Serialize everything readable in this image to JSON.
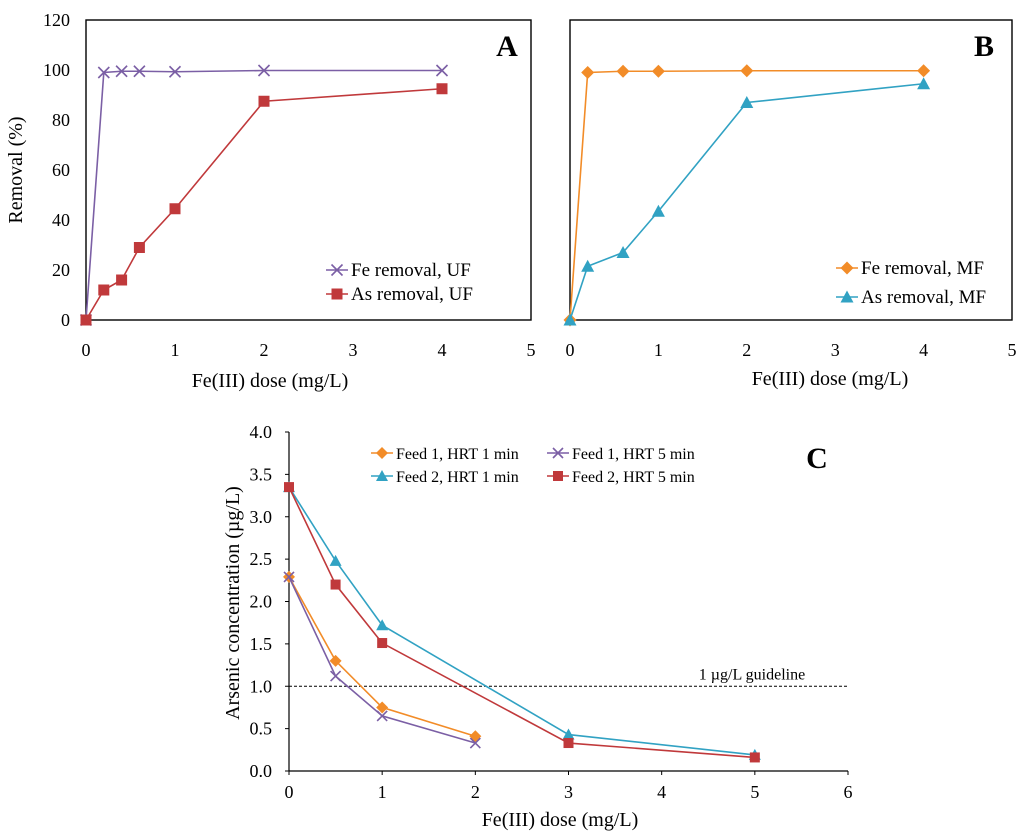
{
  "chart_data": [
    {
      "panel": "A",
      "type": "line",
      "xlabel": "Fe(III) dose (mg/L)",
      "ylabel": "Removal (%)",
      "xlim": [
        0,
        5
      ],
      "ylim": [
        0,
        120
      ],
      "xticks": [
        0,
        1,
        2,
        3,
        4,
        5
      ],
      "yticks": [
        0,
        20,
        40,
        60,
        80,
        100,
        120
      ],
      "grid": false,
      "legend_position": "bottom-right",
      "series": [
        {
          "name": "Fe removal, UF",
          "color": "#7B5FA5",
          "marker": "x",
          "x": [
            0,
            0.2,
            0.4,
            0.6,
            1,
            2,
            4
          ],
          "y": [
            0,
            99,
            99.5,
            99.5,
            99.3,
            99.8,
            99.8
          ]
        },
        {
          "name": "As removal, UF",
          "color": "#C0393B",
          "marker": "square",
          "x": [
            0,
            0.2,
            0.4,
            0.6,
            1,
            2,
            4
          ],
          "y": [
            0,
            12,
            16,
            29,
            44.5,
            87.5,
            92.5
          ]
        }
      ]
    },
    {
      "panel": "B",
      "type": "line",
      "xlabel": "Fe(III) dose (mg/L)",
      "ylabel": "",
      "xlim": [
        0,
        5
      ],
      "ylim": [
        0,
        120
      ],
      "xticks": [
        0,
        1,
        2,
        3,
        4,
        5
      ],
      "grid": false,
      "legend_position": "bottom-right",
      "series": [
        {
          "name": "Fe removal, MF",
          "color": "#F28C28",
          "marker": "diamond",
          "x": [
            0,
            0.2,
            0.6,
            1,
            2,
            4
          ],
          "y": [
            0,
            99,
            99.5,
            99.5,
            99.7,
            99.7
          ]
        },
        {
          "name": "As removal, MF",
          "color": "#31A2C3",
          "marker": "triangle",
          "x": [
            0,
            0.2,
            0.6,
            1,
            2,
            4
          ],
          "y": [
            0,
            21.5,
            27,
            43.5,
            87,
            94.5
          ]
        }
      ]
    },
    {
      "panel": "C",
      "type": "line",
      "xlabel": "Fe(III) dose (mg/L)",
      "ylabel": "Arsenic concentration (µg/L)",
      "xlim": [
        0,
        6
      ],
      "ylim": [
        0,
        4
      ],
      "xticks": [
        0,
        1,
        2,
        3,
        4,
        5,
        6
      ],
      "yticks": [
        "0.0",
        "0.5",
        "1.0",
        "1.5",
        "2.0",
        "2.5",
        "3.0",
        "3.5",
        "4.0"
      ],
      "grid": false,
      "legend_position": "top",
      "annotation": {
        "text": "1 µg/L guideline",
        "y": 1.0
      },
      "series": [
        {
          "name": "Feed 1, HRT 1 min",
          "color": "#F28C28",
          "marker": "diamond",
          "x": [
            0,
            0.5,
            1,
            2
          ],
          "y": [
            2.29,
            1.3,
            0.75,
            0.41
          ]
        },
        {
          "name": "Feed 1, HRT 5 min",
          "color": "#7B5FA5",
          "marker": "x",
          "x": [
            0,
            0.5,
            1,
            2
          ],
          "y": [
            2.29,
            1.12,
            0.65,
            0.33
          ]
        },
        {
          "name": "Feed 2, HRT 1 min",
          "color": "#31A2C3",
          "marker": "triangle",
          "x": [
            0,
            0.5,
            1,
            3,
            5
          ],
          "y": [
            3.35,
            2.48,
            1.72,
            0.43,
            0.19
          ]
        },
        {
          "name": "Feed 2, HRT 5 min",
          "color": "#C0393B",
          "marker": "square",
          "x": [
            0,
            0.5,
            1,
            3,
            5
          ],
          "y": [
            3.35,
            2.2,
            1.51,
            0.33,
            0.16
          ]
        }
      ]
    }
  ]
}
